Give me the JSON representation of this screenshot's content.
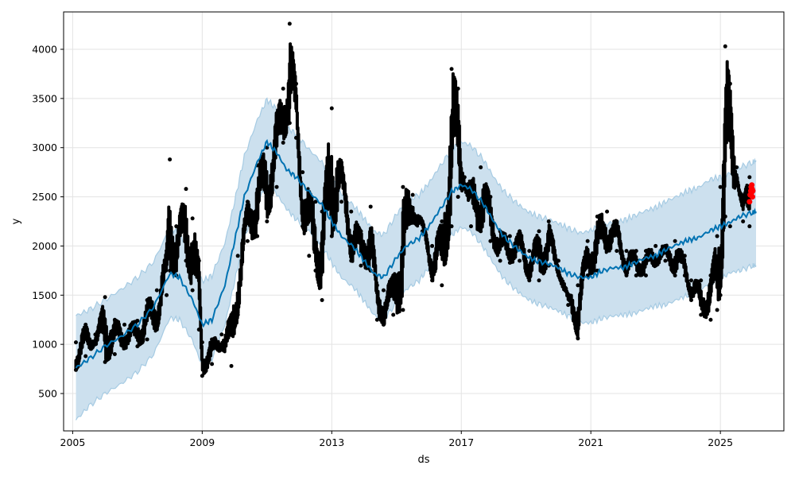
{
  "chart_data": {
    "type": "line",
    "title": "",
    "xlabel": "ds",
    "ylabel": "y",
    "xlim": [
      2004.72,
      2026.96
    ],
    "ylim": [
      120,
      4380
    ],
    "x_ticks": [
      {
        "value": 2005,
        "label": "2005"
      },
      {
        "value": 2009,
        "label": "2009"
      },
      {
        "value": 2013,
        "label": "2013"
      },
      {
        "value": 2017,
        "label": "2017"
      },
      {
        "value": 2021,
        "label": "2021"
      },
      {
        "value": 2025,
        "label": "2025"
      }
    ],
    "y_ticks": [
      {
        "value": 500,
        "label": "500"
      },
      {
        "value": 1000,
        "label": "1000"
      },
      {
        "value": 1500,
        "label": "1500"
      },
      {
        "value": 2000,
        "label": "2000"
      },
      {
        "value": 2500,
        "label": "2500"
      },
      {
        "value": 3000,
        "label": "3000"
      },
      {
        "value": 3500,
        "label": "3500"
      },
      {
        "value": 4000,
        "label": "4000"
      }
    ],
    "grid": true,
    "colors": {
      "forecast_line": "#0072b2",
      "interval_fill": "#cce0ee",
      "interval_edge": "#a6cbe3",
      "actual_points": "#000000",
      "highlight_points": "#ff0000",
      "grid": "#e3e3e3"
    },
    "forecast": {
      "x": [
        2005.1,
        2005.5,
        2006.0,
        2006.5,
        2007.0,
        2007.5,
        2008.0,
        2008.3,
        2008.7,
        2009.0,
        2009.3,
        2009.7,
        2010.0,
        2010.3,
        2010.7,
        2011.0,
        2011.3,
        2011.6,
        2011.9,
        2012.3,
        2012.7,
        2013.0,
        2013.3,
        2013.7,
        2014.0,
        2014.3,
        2014.6,
        2015.0,
        2015.3,
        2015.7,
        2016.0,
        2016.3,
        2016.7,
        2017.0,
        2017.3,
        2017.7,
        2018.0,
        2018.3,
        2018.7,
        2019.0,
        2019.3,
        2019.7,
        2020.0,
        2020.3,
        2020.7,
        2021.0,
        2021.3,
        2021.7,
        2022.0,
        2022.3,
        2022.7,
        2023.0,
        2023.3,
        2023.7,
        2024.0,
        2024.3,
        2024.7,
        2025.0,
        2025.3,
        2025.6,
        2026.0,
        2026.1
      ],
      "yhat": [
        760,
        850,
        980,
        1080,
        1200,
        1380,
        1720,
        1680,
        1450,
        1200,
        1250,
        1600,
        2050,
        2500,
        2850,
        3060,
        2950,
        2780,
        2700,
        2550,
        2420,
        2250,
        2100,
        1980,
        1850,
        1720,
        1680,
        1880,
        2000,
        2080,
        2200,
        2350,
        2550,
        2620,
        2580,
        2420,
        2250,
        2100,
        1980,
        1900,
        1850,
        1820,
        1780,
        1720,
        1680,
        1680,
        1740,
        1780,
        1780,
        1820,
        1880,
        1900,
        1960,
        2020,
        2060,
        2080,
        2160,
        2200,
        2240,
        2300,
        2340,
        2350
      ],
      "lower": [
        230,
        370,
        500,
        600,
        720,
        900,
        1270,
        1250,
        1040,
        780,
        850,
        1200,
        1640,
        2080,
        2440,
        2630,
        2530,
        2380,
        2270,
        2150,
        2000,
        1830,
        1680,
        1570,
        1440,
        1300,
        1250,
        1420,
        1560,
        1650,
        1780,
        1930,
        2110,
        2190,
        2150,
        1980,
        1820,
        1670,
        1550,
        1470,
        1420,
        1380,
        1340,
        1290,
        1220,
        1220,
        1260,
        1290,
        1300,
        1310,
        1360,
        1390,
        1400,
        1460,
        1500,
        1540,
        1620,
        1660,
        1730,
        1750,
        1800,
        1800
      ],
      "upper": [
        1290,
        1350,
        1450,
        1560,
        1680,
        1840,
        2180,
        2130,
        1910,
        1640,
        1700,
        2030,
        2450,
        2910,
        3280,
        3490,
        3390,
        3210,
        3140,
        2980,
        2850,
        2690,
        2530,
        2400,
        2280,
        2150,
        2110,
        2320,
        2460,
        2520,
        2640,
        2790,
        2980,
        3060,
        3020,
        2870,
        2700,
        2560,
        2440,
        2360,
        2310,
        2270,
        2230,
        2180,
        2130,
        2160,
        2210,
        2240,
        2260,
        2300,
        2360,
        2390,
        2450,
        2510,
        2560,
        2590,
        2680,
        2700,
        2740,
        2800,
        2850,
        2870
      ]
    },
    "observed_envelope": {
      "x": [
        2005.1,
        2005.4,
        2005.7,
        2006.0,
        2006.3,
        2006.6,
        2007.0,
        2007.3,
        2007.6,
        2007.9,
        2008.0,
        2008.2,
        2008.5,
        2008.7,
        2008.9,
        2009.0,
        2009.3,
        2009.6,
        2009.9,
        2010.1,
        2010.4,
        2010.7,
        2011.0,
        2011.3,
        2011.5,
        2011.7,
        2011.9,
        2012.1,
        2012.3,
        2012.5,
        2012.7,
        2013.0,
        2013.3,
        2013.6,
        2013.9,
        2014.2,
        2014.4,
        2014.6,
        2014.9,
        2015.2,
        2015.5,
        2015.8,
        2016.1,
        2016.4,
        2016.7,
        2016.9,
        2017.1,
        2017.3,
        2017.6,
        2017.9,
        2018.2,
        2018.5,
        2018.8,
        2019.1,
        2019.4,
        2019.7,
        2020.0,
        2020.3,
        2020.6,
        2020.9,
        2021.2,
        2021.5,
        2021.8,
        2022.1,
        2022.4,
        2022.7,
        2023.0,
        2023.3,
        2023.6,
        2023.9,
        2024.1,
        2024.4,
        2024.7,
        2024.9,
        2025.0,
        2025.15,
        2025.3,
        2025.5,
        2025.7,
        2025.9
      ],
      "low": [
        740,
        880,
        1000,
        820,
        900,
        960,
        980,
        1050,
        1150,
        1500,
        1750,
        1700,
        1850,
        1550,
        1150,
        680,
        800,
        960,
        780,
        1300,
        2050,
        2100,
        2250,
        2600,
        3050,
        3250,
        3100,
        2200,
        1900,
        1750,
        1450,
        2100,
        2450,
        1850,
        1800,
        1750,
        1250,
        1200,
        1300,
        1350,
        2250,
        2150,
        1650,
        1600,
        2200,
        2500,
        2600,
        2200,
        2150,
        2050,
        1850,
        1830,
        1850,
        1650,
        1650,
        1800,
        1700,
        1400,
        1060,
        1700,
        1750,
        1950,
        1950,
        1700,
        1700,
        1700,
        1800,
        1850,
        1700,
        1700,
        1450,
        1300,
        1250,
        1350,
        1500,
        2300,
        2200,
        2700,
        2250,
        2200
      ],
      "high": [
        1020,
        1200,
        1100,
        1480,
        1250,
        1200,
        1240,
        1450,
        1550,
        1950,
        2880,
        2200,
        2580,
        2280,
        1850,
        1020,
        1050,
        1100,
        1300,
        1900,
        2450,
        2820,
        3000,
        3350,
        3600,
        4260,
        3650,
        2750,
        2550,
        2450,
        2350,
        3400,
        2850,
        2350,
        2150,
        2400,
        1600,
        1550,
        1700,
        2600,
        2520,
        2250,
        2000,
        2250,
        3800,
        3600,
        2700,
        2650,
        2800,
        2500,
        2150,
        2100,
        2150,
        1950,
        2150,
        2250,
        1850,
        1500,
        1600,
        2050,
        2300,
        2350,
        2250,
        1950,
        1950,
        1950,
        2000,
        2000,
        2050,
        1900,
        1650,
        1650,
        1700,
        2100,
        2600,
        4030,
        3650,
        2800,
        2500,
        2700
      ]
    },
    "highlight_points": [
      {
        "x": 2025.9,
        "y": 2450
      },
      {
        "x": 2025.92,
        "y": 2520
      },
      {
        "x": 2025.94,
        "y": 2560
      },
      {
        "x": 2025.95,
        "y": 2600
      },
      {
        "x": 2025.96,
        "y": 2540
      },
      {
        "x": 2025.97,
        "y": 2620
      },
      {
        "x": 2025.98,
        "y": 2580
      },
      {
        "x": 2025.99,
        "y": 2500
      },
      {
        "x": 2026.0,
        "y": 2560
      }
    ]
  }
}
